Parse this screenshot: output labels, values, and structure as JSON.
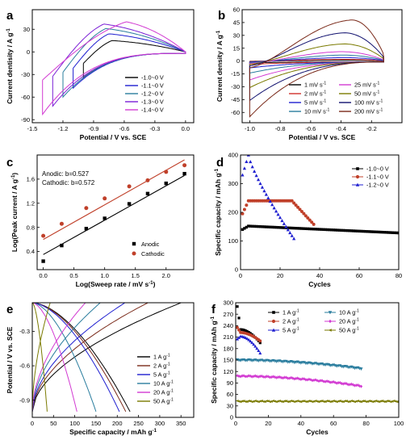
{
  "chart_data": [
    {
      "panel": "a",
      "type": "line",
      "xlabel": "Potential / V vs. SCE",
      "ylabel": "Current dentisity / A g-1",
      "xlim": [
        -1.5,
        0.08
      ],
      "ylim": [
        -94,
        56
      ],
      "xticks": [
        -1.5,
        -1.2,
        -0.9,
        -0.6,
        -0.3,
        0.0
      ],
      "xticklabels": [
        "-1.5",
        "-1.2",
        "-0.9",
        "-0.6",
        "-0.3",
        "0.0"
      ],
      "yticks": [
        -90,
        -60,
        -30,
        0,
        30
      ],
      "yticklabels": [
        "-90",
        "-60",
        "-30",
        "0",
        "30"
      ],
      "legend_position": "lower-right",
      "series": [
        {
          "name": "-1.0~0 V",
          "color": "#000000",
          "v_min": -1.0,
          "peak": [
            -0.72,
            15
          ],
          "cathodic_min": -34
        },
        {
          "name": "-1.1~0 V",
          "color": "#1f1fd0",
          "v_min": -1.1,
          "peak": [
            -0.75,
            24
          ],
          "cathodic_min": -48
        },
        {
          "name": "-1.2~0 V",
          "color": "#2a7d9e",
          "v_min": -1.2,
          "peak": [
            -0.78,
            31
          ],
          "cathodic_min": -60
        },
        {
          "name": "-1.3~0 V",
          "color": "#7a1fd6",
          "v_min": -1.3,
          "peak": [
            -0.8,
            37
          ],
          "cathodic_min": -72
        },
        {
          "name": "-1.4~0 V",
          "color": "#d23ad2",
          "v_min": -1.4,
          "peak": [
            -0.58,
            40
          ],
          "cathodic_min": -83
        }
      ]
    },
    {
      "panel": "b",
      "type": "line",
      "xlabel": "Potential / V vs. SCE",
      "ylabel": "Current density / A g-1",
      "xlim": [
        -1.05,
        0.0
      ],
      "ylim": [
        -72,
        60
      ],
      "xticks": [
        -1.0,
        -0.8,
        -0.6,
        -0.4,
        -0.2
      ],
      "xticklabels": [
        "-1.0",
        "-0.8",
        "-0.6",
        "-0.4",
        "-0.2"
      ],
      "yticks": [
        -60,
        -45,
        -30,
        -15,
        0,
        15,
        30,
        45,
        60
      ],
      "yticklabels": [
        "-60",
        "-45",
        "-30",
        "-15",
        "0",
        "15",
        "30",
        "45",
        "60"
      ],
      "legend_position": "lower-right",
      "series": [
        {
          "name": "1 mV s-1",
          "color": "#000000",
          "peak": [
            -0.38,
            1
          ],
          "cathodic_min": -2
        },
        {
          "name": "2 mV s-1",
          "color": "#d0302a",
          "peak": [
            -0.38,
            2
          ],
          "cathodic_min": -4
        },
        {
          "name": "5 mV s-1",
          "color": "#1f1fd0",
          "peak": [
            -0.38,
            4
          ],
          "cathodic_min": -8
        },
        {
          "name": "10 mV s-1",
          "color": "#2a7d9e",
          "peak": [
            -0.39,
            7
          ],
          "cathodic_min": -14
        },
        {
          "name": "25 mV s-1",
          "color": "#d23ad2",
          "peak": [
            -0.4,
            11
          ],
          "cathodic_min": -22
        },
        {
          "name": "50 mV s-1",
          "color": "#7a7a00",
          "peak": [
            -0.38,
            20
          ],
          "cathodic_min": -31
        },
        {
          "name": "100 mV s-1",
          "color": "#10106e",
          "peak": [
            -0.38,
            33
          ],
          "cathodic_min": -46
        },
        {
          "name": "200 mV s-1",
          "color": "#7a2a1a",
          "peak": [
            -0.33,
            48
          ],
          "cathodic_min": -65
        }
      ]
    },
    {
      "panel": "c",
      "type": "scatter",
      "xlabel": "Log(Sweep rate / mV s-1)",
      "ylabel": "Log(Peak current / A g-1)",
      "xlim": [
        -0.1,
        2.45
      ],
      "ylim": [
        0.1,
        2.0
      ],
      "xticks": [
        0.0,
        0.5,
        1.0,
        1.5,
        2.0
      ],
      "xticklabels": [
        "0.0",
        "0.5",
        "1.0",
        "1.5",
        "2.0"
      ],
      "yticks": [
        0.4,
        0.8,
        1.2,
        1.6
      ],
      "yticklabels": [
        "0.4",
        "0.8",
        "1.2",
        "1.6"
      ],
      "annotations": [
        "Anodic: b=0.527",
        "Cathodic: b=0.572"
      ],
      "legend_position": "lower-right",
      "series": [
        {
          "name": "Anodic",
          "color": "#000000",
          "marker": "square",
          "x": [
            0.0,
            0.3,
            0.7,
            1.0,
            1.4,
            1.7,
            2.0,
            2.3
          ],
          "y": [
            0.24,
            0.5,
            0.78,
            0.95,
            1.19,
            1.36,
            1.53,
            1.69
          ],
          "fit": [
            [
              0.0,
              0.35
            ],
            [
              2.3,
              1.66
            ]
          ]
        },
        {
          "name": "Cathodic",
          "color": "#c0402a",
          "marker": "circle",
          "x": [
            0.0,
            0.3,
            0.7,
            1.0,
            1.4,
            1.7,
            2.0,
            2.3
          ],
          "y": [
            0.66,
            0.86,
            1.12,
            1.28,
            1.48,
            1.58,
            1.72,
            1.83
          ],
          "fit": [
            [
              0.0,
              0.6
            ],
            [
              2.3,
              1.92
            ]
          ]
        }
      ]
    },
    {
      "panel": "d",
      "type": "scatter",
      "xlabel": "Cycles",
      "ylabel": "Specific capacity / mAh g-1",
      "xlim": [
        0,
        80
      ],
      "ylim": [
        0,
        400
      ],
      "xticks": [
        0,
        20,
        40,
        60,
        80
      ],
      "xticklabels": [
        "0",
        "20",
        "40",
        "60",
        "80"
      ],
      "yticks": [
        0,
        100,
        200,
        300,
        400
      ],
      "yticklabels": [
        "0",
        "100",
        "200",
        "300",
        "400"
      ],
      "legend_position": "top-right",
      "series": [
        {
          "name": "-1.0~0 V",
          "color": "#000000",
          "marker": "square",
          "n": 80,
          "start": 140,
          "plateau": 152,
          "end": 128
        },
        {
          "name": "-1.1~0 V",
          "color": "#c0402a",
          "marker": "circle",
          "n": 37,
          "start": 195,
          "plateau": 240,
          "end": 158
        },
        {
          "name": "-1.2~0 V",
          "color": "#1f1fd0",
          "marker": "triangle",
          "n": 27,
          "start": 330,
          "plateau": 400,
          "end": 108
        }
      ]
    },
    {
      "panel": "e",
      "type": "line",
      "xlabel": "Specific capacity / mAh g-1",
      "ylabel": "Potential / V vs. SCE",
      "xlim": [
        0,
        380
      ],
      "ylim": [
        -1.05,
        -0.05
      ],
      "xticks": [
        0,
        50,
        100,
        150,
        200,
        250,
        300,
        350
      ],
      "xticklabels": [
        "0",
        "50",
        "100",
        "150",
        "200",
        "250",
        "300",
        "350"
      ],
      "yticks": [
        -0.9,
        -0.6,
        -0.3
      ],
      "yticklabels": [
        "-0.9",
        "-0.6",
        "-0.3"
      ],
      "legend_position": "lower-right",
      "series": [
        {
          "name": "1 A g-1",
          "color": "#000000",
          "discharge_capacity": 230,
          "charge_capacity": 350
        },
        {
          "name": "2 A g-1",
          "color": "#7a2a1a",
          "discharge_capacity": 220,
          "charge_capacity": 272
        },
        {
          "name": "5 A g-1",
          "color": "#1f1fd0",
          "discharge_capacity": 205,
          "charge_capacity": 218
        },
        {
          "name": "10 A g-1",
          "color": "#2a7d9e",
          "discharge_capacity": 150,
          "charge_capacity": 160
        },
        {
          "name": "20 A g-1",
          "color": "#d23ad2",
          "discharge_capacity": 105,
          "charge_capacity": 125
        },
        {
          "name": "50 A g-1",
          "color": "#7a7a00",
          "discharge_capacity": 35,
          "charge_capacity": 42
        }
      ]
    },
    {
      "panel": "f",
      "type": "scatter",
      "xlabel": "Cycles",
      "ylabel": "Specific capacity / mAh g-1",
      "xlim": [
        0,
        100
      ],
      "ylim": [
        0,
        300
      ],
      "xticks": [
        0,
        20,
        40,
        60,
        80,
        100
      ],
      "xticklabels": [
        "0",
        "20",
        "40",
        "60",
        "80",
        "100"
      ],
      "yticks": [
        0,
        30,
        60,
        90,
        120,
        150,
        180,
        210,
        240,
        270,
        300
      ],
      "yticklabels": [
        "0",
        "30",
        "60",
        "90",
        "120",
        "150",
        "180",
        "210",
        "240",
        "270",
        "300"
      ],
      "legend_position": "top",
      "series": [
        {
          "name": "1 A g-1",
          "color": "#000000",
          "marker": "square",
          "n": 15,
          "start": 290,
          "plateau": 230,
          "end": 195
        },
        {
          "name": "2 A g-1",
          "color": "#c0402a",
          "marker": "circle",
          "n": 15,
          "start": 235,
          "plateau": 222,
          "end": 200
        },
        {
          "name": "5 A g-1",
          "color": "#1f1fd0",
          "marker": "triangle",
          "n": 15,
          "start": 205,
          "plateau": 212,
          "end": 168
        },
        {
          "name": "10 A g-1",
          "color": "#2a7d9e",
          "marker": "triangle-down",
          "n": 77,
          "start": 150,
          "plateau": 150,
          "end": 128
        },
        {
          "name": "20 A g-1",
          "color": "#d23ad2",
          "marker": "diamond",
          "n": 77,
          "start": 108,
          "plateau": 108,
          "end": 82
        },
        {
          "name": "50 A g-1",
          "color": "#7a7a00",
          "marker": "triangle-left",
          "n": 100,
          "start": 42,
          "plateau": 42,
          "end": 42
        }
      ]
    }
  ]
}
